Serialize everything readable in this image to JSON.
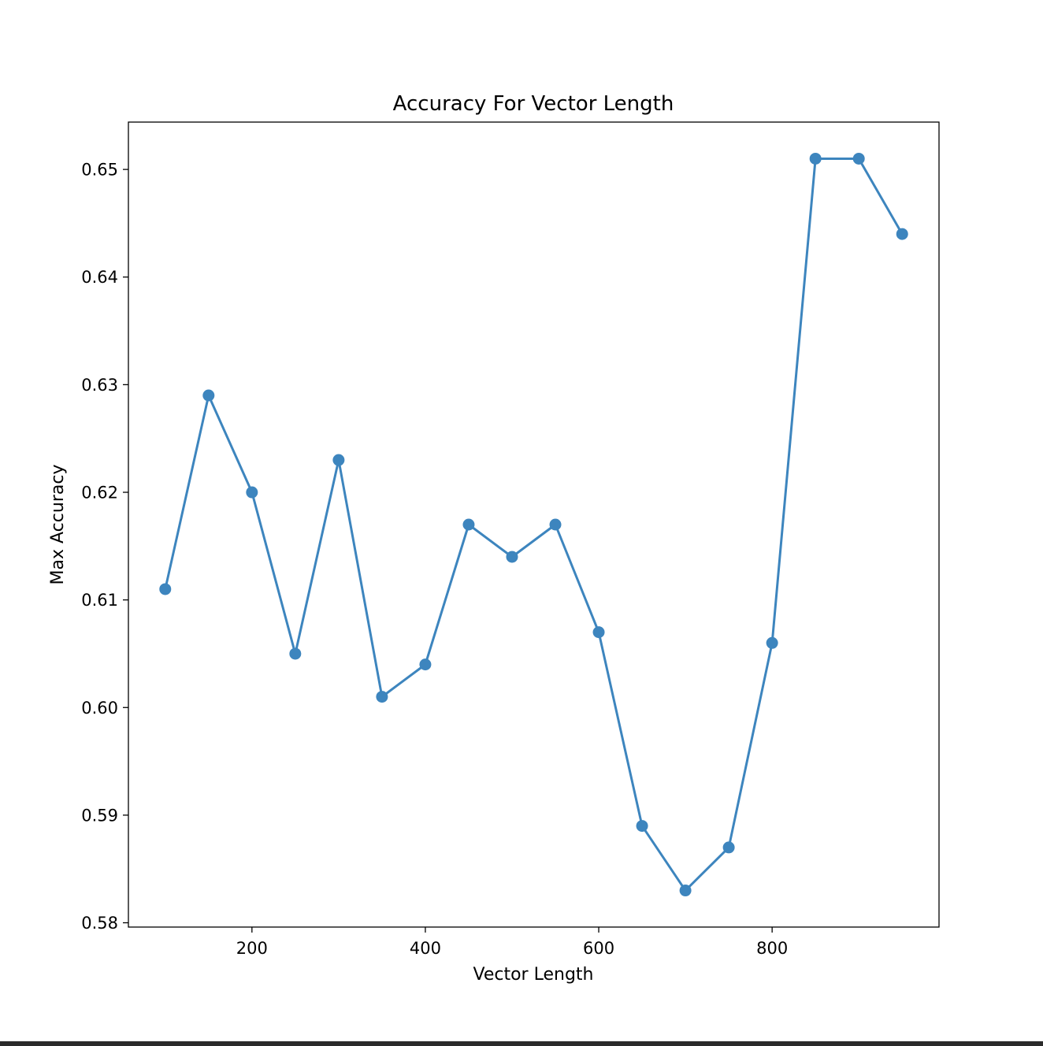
{
  "chart_data": {
    "type": "line",
    "title": "Accuracy For Vector Length",
    "xlabel": "Vector Length",
    "ylabel": "Max Accuracy",
    "x": [
      100,
      150,
      200,
      250,
      300,
      350,
      400,
      450,
      500,
      550,
      600,
      650,
      700,
      750,
      800,
      850,
      900,
      950
    ],
    "series": [
      {
        "values": [
          0.611,
          0.629,
          0.62,
          0.605,
          0.623,
          0.601,
          0.604,
          0.617,
          0.614,
          0.617,
          0.607,
          0.589,
          0.583,
          0.587,
          0.606,
          0.651,
          0.651,
          0.644
        ],
        "color": "#3d85be",
        "marker": "circle"
      }
    ],
    "xlim": [
      57.5,
      992.5
    ],
    "ylim": [
      0.5796,
      0.6544
    ],
    "xticks": [
      200,
      400,
      600,
      800
    ],
    "xtick_labels": [
      "200",
      "400",
      "600",
      "800"
    ],
    "yticks": [
      0.58,
      0.59,
      0.6,
      0.61,
      0.62,
      0.63,
      0.64,
      0.65
    ],
    "ytick_labels": [
      "0.58",
      "0.59",
      "0.60",
      "0.61",
      "0.62",
      "0.63",
      "0.64",
      "0.65"
    ],
    "grid": false,
    "legend": "none"
  }
}
